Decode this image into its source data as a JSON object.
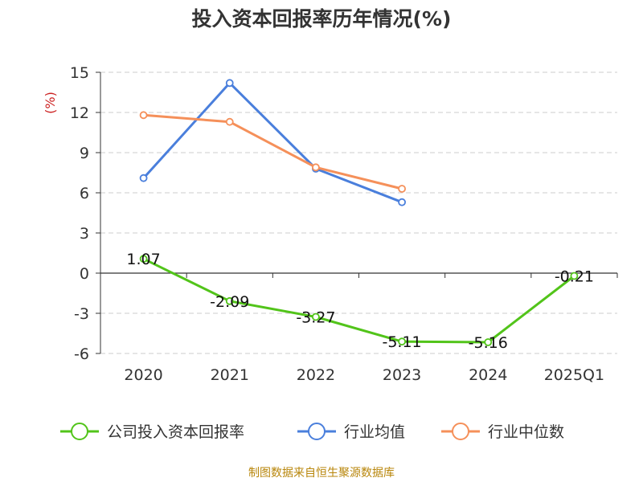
{
  "chart_data": {
    "type": "line",
    "title": "投入资本回报率历年情况(%)",
    "ylabel": "(%)",
    "categories": [
      "2020",
      "2021",
      "2022",
      "2023",
      "2024",
      "2025Q1"
    ],
    "ylim": [
      -6,
      15
    ],
    "yticks": [
      15,
      12,
      9,
      6,
      3,
      0,
      -3,
      -6
    ],
    "grid": true,
    "legend_position": "bottom",
    "series": [
      {
        "name": "公司投入资本回报率",
        "color": "#52c41a",
        "values": [
          1.07,
          -2.09,
          -3.27,
          -5.11,
          -5.16,
          -0.21
        ],
        "labels": [
          "1.07",
          "-2.09",
          "-3.27",
          "-5.11",
          "-5.16",
          "-0.21"
        ]
      },
      {
        "name": "行业均值",
        "color": "#4a7fdc",
        "values": [
          7.1,
          14.2,
          7.8,
          5.3,
          null,
          null
        ]
      },
      {
        "name": "行业中位数",
        "color": "#f5905a",
        "values": [
          11.8,
          11.3,
          7.9,
          6.3,
          null,
          null
        ]
      }
    ]
  },
  "footer": "制图数据来自恒生聚源数据库"
}
